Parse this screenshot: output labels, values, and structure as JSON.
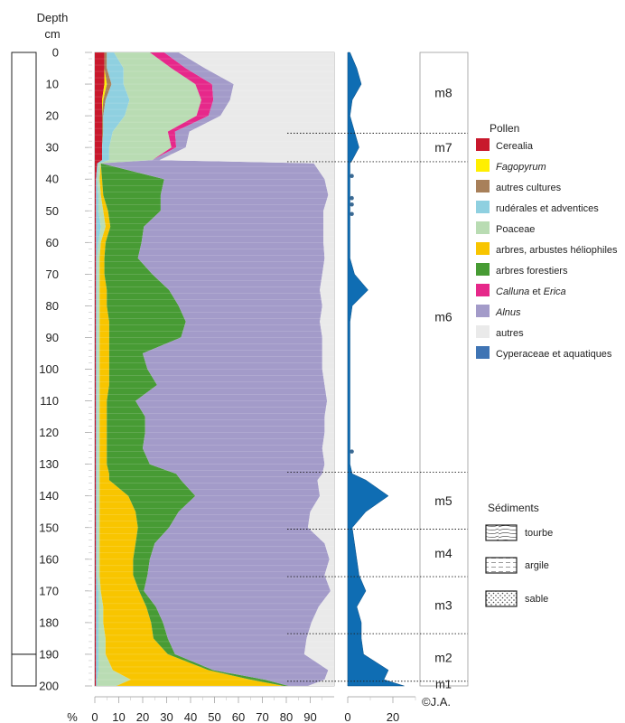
{
  "chart_data": {
    "type": "area",
    "orientation": "vertical-depth",
    "depth_label_line1": "Depth",
    "depth_label_line2": "cm",
    "depth_ticks": [
      0,
      10,
      20,
      30,
      40,
      50,
      60,
      70,
      80,
      90,
      100,
      110,
      120,
      130,
      140,
      150,
      160,
      170,
      180,
      190,
      200
    ],
    "xlabel": "%",
    "x_ticks": [
      0,
      10,
      20,
      30,
      40,
      50,
      60,
      70,
      80,
      90
    ],
    "xlim": [
      0,
      100
    ],
    "ylim": [
      0,
      200
    ],
    "aquatic_ticks": [
      0,
      20
    ],
    "aquatic_xlim": [
      0,
      30
    ],
    "copyright": "©J.A.",
    "depths": [
      0,
      5,
      10,
      15,
      20,
      25,
      30,
      34,
      35,
      40,
      45,
      50,
      55,
      60,
      65,
      70,
      75,
      80,
      85,
      90,
      95,
      100,
      105,
      110,
      115,
      120,
      125,
      130,
      133,
      135,
      140,
      145,
      150,
      155,
      160,
      165,
      170,
      175,
      180,
      185,
      190,
      195,
      198,
      200
    ],
    "series": [
      {
        "name": "Cerealia",
        "color": "#c8182c",
        "values": [
          4,
          4,
          4,
          3,
          3,
          3,
          3,
          3,
          1,
          0.5,
          0.5,
          0.5,
          0.5,
          0.5,
          0.5,
          0.5,
          0.5,
          0.5,
          0.5,
          0.5,
          0.5,
          0.5,
          0.5,
          0.5,
          0.5,
          0.5,
          0.5,
          0.5,
          0.5,
          0.5,
          0.5,
          0.5,
          0.5,
          0.5,
          0.5,
          0.5,
          0.5,
          0.5,
          0.5,
          0.5,
          0.5,
          0.5,
          0.5,
          0.5
        ]
      },
      {
        "name": "Fagopyrum",
        "color": "#ffef00",
        "values": [
          0,
          0,
          1,
          0.5,
          0,
          0,
          0,
          0,
          0,
          0,
          0,
          0,
          0,
          0,
          0,
          0,
          0,
          0,
          0,
          0,
          0,
          0,
          0,
          0,
          0,
          0,
          0,
          0,
          0,
          0,
          0,
          0,
          0,
          0,
          0,
          0,
          0,
          0,
          0,
          0,
          0,
          0,
          0,
          0
        ]
      },
      {
        "name": "autres cultures",
        "color": "#a8805a",
        "values": [
          1,
          1,
          2,
          1,
          0.5,
          0.5,
          0,
          0,
          0,
          0,
          0,
          0,
          0,
          0,
          0,
          0,
          0,
          0,
          0,
          0,
          0,
          0,
          0,
          0,
          0,
          0,
          0,
          0,
          0,
          0,
          0,
          0,
          0,
          0,
          0,
          0,
          0,
          0,
          0,
          0,
          0,
          0,
          0,
          0
        ]
      },
      {
        "name": "rudérales et adventices",
        "color": "#8fd0e0",
        "values": [
          3,
          7,
          5,
          10,
          9,
          4,
          3,
          3,
          0.5,
          0.5,
          1,
          1,
          2,
          1,
          0.5,
          0.5,
          0.5,
          0.5,
          0.5,
          0.5,
          0.5,
          0.5,
          0.5,
          0.5,
          0.5,
          0.5,
          0.5,
          0.5,
          0.5,
          0.5,
          0.5,
          0.5,
          0.5,
          0.5,
          0.5,
          0.5,
          1,
          1,
          1,
          1,
          1,
          1,
          0.5,
          0.5
        ]
      },
      {
        "name": "Poaceae",
        "color": "#b9dcb3",
        "values": [
          15,
          20,
          30,
          30,
          30,
          23,
          26,
          18,
          1,
          1,
          1,
          2,
          2,
          1,
          1,
          1,
          1,
          1,
          1,
          1,
          1,
          1,
          1,
          1,
          1,
          1,
          1,
          1,
          1,
          1,
          1,
          1,
          1,
          1,
          1,
          1,
          1,
          2,
          2,
          3,
          3,
          6,
          14,
          8
        ]
      },
      {
        "name": "arbres, arbustes héliophiles",
        "color": "#f8c500",
        "values": [
          0,
          0,
          0,
          0,
          0,
          0,
          0,
          0,
          0,
          1,
          1,
          2,
          2,
          2,
          2,
          2,
          3,
          3,
          4,
          4,
          4,
          4,
          4,
          3,
          3,
          3,
          3,
          3,
          4,
          4,
          12,
          15,
          16,
          15,
          14,
          14,
          16,
          18,
          20,
          20,
          26,
          40,
          50,
          70
        ]
      },
      {
        "name": "arbres forestiers",
        "color": "#479b34",
        "values": [
          0,
          0,
          0,
          0,
          0,
          0,
          0,
          0,
          0,
          26,
          24,
          22,
          14,
          15,
          14,
          20,
          26,
          30,
          32,
          30,
          14,
          16,
          20,
          12,
          16,
          16,
          15,
          18,
          28,
          30,
          28,
          18,
          13,
          8,
          7,
          6,
          2,
          4,
          5,
          6,
          3,
          2,
          6,
          2
        ]
      },
      {
        "name": "Calluna et Erica",
        "color": "#e6288a",
        "values": [
          6,
          6,
          7,
          5,
          5,
          3,
          2,
          0,
          0,
          0,
          0,
          0,
          0,
          0,
          0,
          0,
          0,
          0,
          0,
          0,
          0,
          0,
          0,
          0,
          0,
          0,
          0,
          0,
          0,
          0,
          0,
          0,
          0,
          0,
          0,
          0,
          0,
          0,
          0,
          0,
          0,
          0,
          0,
          0
        ]
      },
      {
        "name": "Alnus",
        "color": "#a39bc9",
        "values": [
          6,
          8,
          9,
          7,
          5,
          6,
          4,
          3,
          89,
          67,
          70,
          68,
          75,
          76,
          78,
          71,
          63,
          60,
          56,
          59,
          75,
          73,
          70,
          80,
          75,
          75,
          75,
          73,
          61,
          57,
          52,
          55,
          58,
          71,
          75,
          74,
          78,
          68,
          62,
          58,
          54,
          48,
          25,
          8
        ]
      },
      {
        "name": "autres",
        "color": "#eaeaea",
        "values": [
          65,
          54,
          42,
          44,
          48,
          61,
          62,
          75,
          9,
          4.5,
          3.5,
          5.5,
          5.5,
          4.5,
          5.5,
          5.5,
          6,
          6,
          7,
          5.5,
          6,
          5.5,
          5,
          3.5,
          4,
          4,
          5,
          4.5,
          5.5,
          7.5,
          6,
          10.5,
          11.5,
          5.5,
          3.5,
          4.5,
          2.5,
          7.5,
          9.5,
          12,
          12.5,
          3,
          4,
          11.5
        ]
      }
    ],
    "aquatic": {
      "name": "Cyperaceae et aquatiques",
      "color": "#0f6db3",
      "values": [
        1,
        4,
        6,
        2,
        1,
        3,
        5,
        2,
        1,
        1,
        1,
        1,
        1,
        1,
        1,
        3,
        9,
        2,
        1,
        1,
        1,
        1,
        1,
        1,
        1,
        1,
        1,
        1,
        2,
        8,
        18,
        8,
        2,
        3,
        4,
        5,
        8,
        4,
        6,
        6,
        7,
        18,
        16,
        25
      ]
    },
    "aquatic_dots": [
      39,
      46,
      48,
      51,
      126
    ],
    "zones": [
      {
        "label": "m8",
        "top": 0,
        "bottom": 25.5
      },
      {
        "label": "m7",
        "top": 25.5,
        "bottom": 34.5
      },
      {
        "label": "m6",
        "top": 34.5,
        "bottom": 132.5
      },
      {
        "label": "m5",
        "top": 132.5,
        "bottom": 150.5
      },
      {
        "label": "m4",
        "top": 150.5,
        "bottom": 165.5
      },
      {
        "label": "m3",
        "top": 165.5,
        "bottom": 183.5
      },
      {
        "label": "m2",
        "top": 183.5,
        "bottom": 198.5
      },
      {
        "label": "m1",
        "top": 198.5,
        "bottom": 200
      }
    ],
    "legend_title": "Pollen",
    "legend": [
      {
        "label": "Cerealia",
        "color": "#c8182c"
      },
      {
        "label": "Fagopyrum",
        "color": "#ffef00",
        "italic": true
      },
      {
        "label": "autres cultures",
        "color": "#a8805a"
      },
      {
        "label": "rudérales et adventices",
        "color": "#8fd0e0"
      },
      {
        "label": "Poaceae",
        "color": "#b9dcb3"
      },
      {
        "label": "arbres, arbustes héliophiles",
        "color": "#f8c500"
      },
      {
        "label": "arbres forestiers",
        "color": "#479b34"
      },
      {
        "label": "Calluna et Erica",
        "color": "#e6288a",
        "mixed": [
          "Calluna",
          " et ",
          "Erica"
        ]
      },
      {
        "label": "Alnus",
        "color": "#a39bc9",
        "italic": true
      },
      {
        "label": "autres",
        "color": "#eaeaea"
      },
      {
        "label": "Cyperaceae et aquatiques",
        "color": "#3f74b4"
      }
    ],
    "sediment_title": "Sédiments",
    "sediments": [
      {
        "label": "tourbe",
        "pattern": "tourbe"
      },
      {
        "label": "argile",
        "pattern": "argile"
      },
      {
        "label": "sable",
        "pattern": "sable"
      }
    ],
    "sediment_column": [
      {
        "type": "tourbe",
        "top": 0,
        "bottom": 190
      },
      {
        "type": "sable",
        "top": 190,
        "bottom": 200
      }
    ]
  }
}
